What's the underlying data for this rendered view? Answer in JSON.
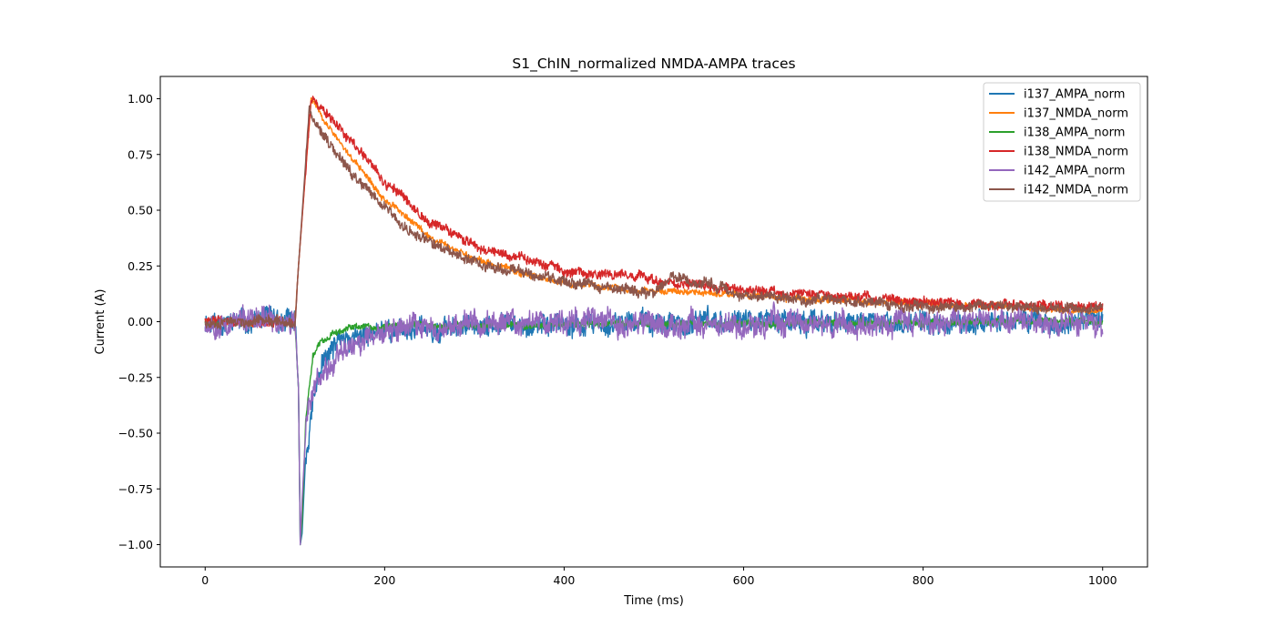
{
  "chart_data": {
    "type": "line",
    "title": "S1_ChIN_normalized NMDA-AMPA traces",
    "xlabel": "Time (ms)",
    "ylabel": "Current (A)",
    "xlim": [
      -50,
      1050
    ],
    "ylim": [
      -1.1,
      1.1
    ],
    "xticks": [
      0,
      200,
      400,
      600,
      800,
      1000
    ],
    "xtick_labels": [
      "0",
      "200",
      "400",
      "600",
      "800",
      "1000"
    ],
    "yticks": [
      -1.0,
      -0.75,
      -0.5,
      -0.25,
      0.0,
      0.25,
      0.5,
      0.75,
      1.0
    ],
    "ytick_labels": [
      "−1.00",
      "−0.75",
      "−0.50",
      "−0.25",
      "0.00",
      "0.25",
      "0.50",
      "0.75",
      "1.00"
    ],
    "grid": false,
    "legend_position": "top-right",
    "series": [
      {
        "name": "i137_AMPA_norm",
        "color": "#1f77b4",
        "noise": 0.04,
        "seed": 11,
        "x": [
          0,
          100,
          104,
          106,
          108,
          112,
          120,
          130,
          150,
          200,
          300,
          500,
          1000
        ],
        "y": [
          0,
          0,
          -0.3,
          -1.0,
          -0.95,
          -0.6,
          -0.35,
          -0.2,
          -0.1,
          -0.04,
          -0.02,
          -0.01,
          0
        ]
      },
      {
        "name": "i137_NMDA_norm",
        "color": "#ff7f0e",
        "noise": 0.012,
        "seed": 23,
        "x": [
          0,
          100,
          104,
          118,
          150,
          200,
          250,
          300,
          400,
          500,
          600,
          800,
          1000
        ],
        "y": [
          0,
          0,
          0.25,
          1.0,
          0.8,
          0.55,
          0.38,
          0.28,
          0.17,
          0.14,
          0.12,
          0.08,
          0.05
        ]
      },
      {
        "name": "i138_AMPA_norm",
        "color": "#2ca02c",
        "noise": 0.012,
        "seed": 37,
        "x": [
          0,
          100,
          104,
          106,
          108,
          112,
          120,
          130,
          150,
          200,
          400,
          1000
        ],
        "y": [
          0,
          0,
          -0.3,
          -1.0,
          -0.9,
          -0.45,
          -0.15,
          -0.08,
          -0.04,
          -0.02,
          -0.01,
          0
        ]
      },
      {
        "name": "i138_NMDA_norm",
        "color": "#d62728",
        "noise": 0.018,
        "seed": 41,
        "x": [
          0,
          100,
          104,
          118,
          150,
          200,
          250,
          300,
          400,
          500,
          600,
          800,
          1000
        ],
        "y": [
          0,
          0,
          0.25,
          1.0,
          0.87,
          0.63,
          0.45,
          0.34,
          0.23,
          0.19,
          0.14,
          0.09,
          0.06
        ]
      },
      {
        "name": "i142_AMPA_norm",
        "color": "#9467bd",
        "noise": 0.045,
        "seed": 53,
        "x": [
          0,
          100,
          104,
          106,
          108,
          112,
          120,
          140,
          180,
          250,
          400,
          600,
          800,
          1000
        ],
        "y": [
          0,
          0,
          -0.3,
          -1.0,
          -0.8,
          -0.5,
          -0.3,
          -0.16,
          -0.06,
          -0.02,
          0,
          0,
          0,
          0
        ]
      },
      {
        "name": "i142_NMDA_norm",
        "color": "#8c564b",
        "noise": 0.02,
        "seed": 67,
        "x": [
          0,
          100,
          104,
          116,
          150,
          200,
          250,
          300,
          400,
          500,
          520,
          600,
          800,
          1000
        ],
        "y": [
          0,
          0,
          0.25,
          0.95,
          0.72,
          0.5,
          0.36,
          0.27,
          0.18,
          0.13,
          0.2,
          0.12,
          0.07,
          0.06
        ]
      }
    ]
  }
}
